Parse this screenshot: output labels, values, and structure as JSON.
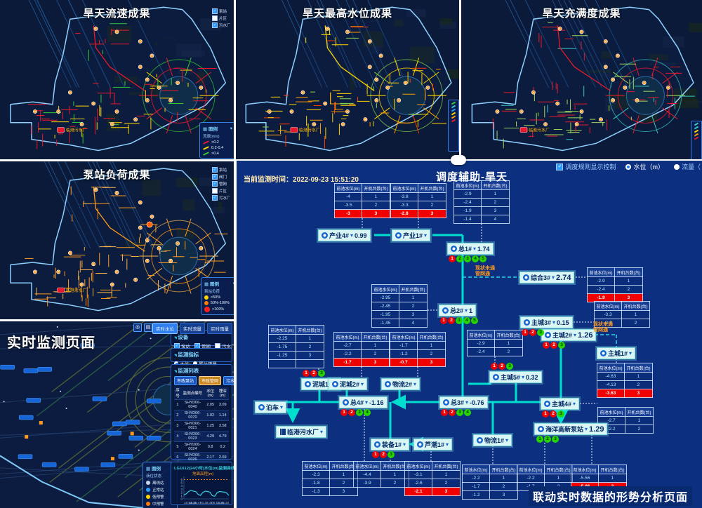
{
  "maps": [
    {
      "title": "旱天流速成果",
      "plant_label": "临港污水厂",
      "layers": [
        {
          "label": "泵站",
          "checked": true
        },
        {
          "label": "片区",
          "checked": false
        },
        {
          "label": "污水厂",
          "checked": true
        }
      ],
      "legend": {
        "title": "图例",
        "subtitle": "流速(m/s)",
        "items": [
          {
            "color": "#e8192c",
            "label": "<0.2"
          },
          {
            "color": "#ffd400",
            "label": "0.2-0.4"
          },
          {
            "color": "#35c935",
            "label": ">0.4"
          }
        ]
      },
      "palette": [
        "#e8192c",
        "#ffd400",
        "#35c935"
      ],
      "weights": [
        0.55,
        0.3,
        0.15
      ]
    },
    {
      "title": "旱天最高水位成果",
      "plant_label": "临港污水厂",
      "side_legend": {
        "colors": [
          "#35c935",
          "#35c9c9",
          "#2e9bff",
          "#ffd400",
          "#ff9a00",
          "#e8192c"
        ]
      },
      "palette": [
        "#ffd400",
        "#ff9a00",
        "#ff3b00",
        "#8bd44a"
      ],
      "weights": [
        0.45,
        0.3,
        0.15,
        0.1
      ]
    },
    {
      "title": "旱天充满度成果",
      "plant_label": "临港污水厂",
      "side_legend": {
        "colors": [
          "#35c9c9",
          "#35c9c9",
          "#ffd400",
          "#ff9a00",
          "#e8192c"
        ]
      },
      "palette": [
        "#e8192c",
        "#9fd85a",
        "#35c9c9"
      ],
      "weights": [
        0.5,
        0.4,
        0.1
      ]
    },
    {
      "title": "泵站负荷成果",
      "plant_label": "临港污水厂",
      "layers": [
        {
          "label": "泵站",
          "checked": true
        },
        {
          "label": "阀门",
          "checked": true
        },
        {
          "label": "管网",
          "checked": true
        },
        {
          "label": "片区",
          "checked": false
        },
        {
          "label": "污水厂",
          "checked": true
        }
      ],
      "legend": {
        "title": "图例",
        "subtitle": "泵站负荷",
        "items": [
          {
            "color": "#ffd400",
            "label": "<50%"
          },
          {
            "color": "#ff7a00",
            "label": "50%-100%"
          },
          {
            "color": "#ff1f1f",
            "label": ">100%"
          }
        ]
      },
      "palette": [
        "#ff9a1e",
        "#ffb64a"
      ],
      "weights": [
        0.7,
        0.3
      ]
    }
  ],
  "monitor": {
    "title": "实时监测页面",
    "tabs": [
      {
        "label": "实时水位",
        "active": true
      },
      {
        "label": "实时流量",
        "active": false
      },
      {
        "label": "实时雨量",
        "active": false
      }
    ],
    "device": {
      "title": "设备",
      "items": [
        {
          "label": "泵站",
          "checked": true
        },
        {
          "label": "管网",
          "checked": true
        },
        {
          "label": "污水厂",
          "checked": false
        }
      ]
    },
    "indicator": {
      "title": "监测指标",
      "options": [
        {
          "label": "水位",
          "selected": true
        },
        {
          "label": "累计雨量",
          "selected": false
        }
      ]
    },
    "list": {
      "title": "监测列表",
      "buttons": [
        {
          "label": "市政泵站",
          "active": false
        },
        {
          "label": "市政管网",
          "active": true
        },
        {
          "label": "污水厂",
          "active": false
        }
      ],
      "headers": [
        "序号",
        "监测点编号",
        "水位(m)",
        "埋深(m)"
      ],
      "rows": [
        [
          "1",
          "SHYD06-0040",
          "2.05",
          "3.09"
        ],
        [
          "2",
          "SHYD06-0070",
          "1.02",
          "1.14"
        ],
        [
          "3",
          "SHYD06-0021",
          "1.25",
          "3.58"
        ],
        [
          "4",
          "SHYD06-0023",
          "4.29",
          "4.79"
        ],
        [
          "5",
          "SHYD06-0024",
          "0.8",
          "0.2"
        ],
        [
          "6",
          "SHYD06-0026",
          "2.17",
          "2.69"
        ],
        [
          "7",
          "SHYD06-0041",
          "0.79",
          "1.04"
        ],
        [
          "8",
          "SHYD06-0049",
          "2.99",
          "4.58"
        ],
        [
          "9",
          "SHYD06-0050",
          "",
          ""
        ]
      ]
    },
    "legend": {
      "title": "图例",
      "subtitle": "液位状态",
      "items": [
        {
          "color": "#c9d6e8",
          "label": "离线站"
        },
        {
          "color": "#2e9bff",
          "label": "正常站"
        },
        {
          "color": "#ffd400",
          "label": "低预警"
        },
        {
          "color": "#ff7a00",
          "label": "中预警"
        },
        {
          "color": "#ff2222",
          "label": "高预警"
        }
      ]
    },
    "chart": {
      "type": "line",
      "title": "LG1612(24小时)水位(m)监测曲线",
      "threshold_label": "地面高程(m)",
      "threshold_value": 6,
      "yticks": [
        6,
        5,
        4,
        3,
        2,
        1,
        0
      ],
      "xticks": [
        "15:43:33",
        "20:28:47",
        "01:28:41",
        "06:13:26",
        "11:43:33"
      ],
      "values": [
        1.2,
        1.6,
        2.3,
        2.6,
        2.4,
        2.3,
        1.4,
        1.1,
        2.0,
        2.4,
        2.3,
        2.1,
        1.0,
        0.8,
        1.9,
        2.3,
        2.2,
        2.1,
        1.9,
        1.1
      ],
      "ylim": [
        0,
        7
      ]
    }
  },
  "dispatch": {
    "current_time_label": "当前监测时间：",
    "current_time": "2022-09-23 15:51:20",
    "title": "调度辅助-旱天",
    "controls": {
      "rule_checkbox": "调度规则显示控制",
      "radio_water": "水位（m）",
      "radio_flow": "流量（"
    },
    "table_headers": [
      "前池水位(m)",
      "开机台数(台)"
    ],
    "note_lines": [
      "现状未通",
      "管网通"
    ],
    "caption": "联动实时数据的形势分析页面",
    "pumps": [
      {
        "id": "chanye4",
        "label": "产业4#",
        "value": "0.99"
      },
      {
        "id": "chanye1",
        "label": "产业1#",
        "value": ""
      },
      {
        "id": "zong1",
        "label": "总1#",
        "value": "1.74",
        "dots": [
          "r",
          "g",
          "g",
          "g",
          "g"
        ]
      },
      {
        "id": "zonghe3",
        "label": "综合3#",
        "value": "2.74",
        "big": true
      },
      {
        "id": "zong2",
        "label": "总2#",
        "value": "1",
        "dots": [
          "r",
          "r",
          "g",
          "g",
          "g"
        ]
      },
      {
        "id": "nicheng1",
        "label": "泥城1#",
        "value": "",
        "dots": [
          "r",
          "r",
          "g"
        ]
      },
      {
        "id": "nicheng2",
        "label": "泥城2#",
        "value": ""
      },
      {
        "id": "wuliu2",
        "label": "物流2#",
        "value": ""
      },
      {
        "id": "zhucheng3",
        "label": "主城3#",
        "value": "0.15",
        "dots": [
          "r",
          "r",
          "g"
        ]
      },
      {
        "id": "zhucheng2",
        "label": "主城2#",
        "value": "1.26",
        "big": true,
        "dots": [
          "r",
          "r",
          "g"
        ]
      },
      {
        "id": "zhucheng1",
        "label": "主城1#",
        "value": ""
      },
      {
        "id": "zhucheng5",
        "label": "主城5#",
        "value": "0.32",
        "dots": [
          "r",
          "r",
          "g"
        ]
      },
      {
        "id": "zong3",
        "label": "总3#",
        "value": "-0.76",
        "dots": [
          "r",
          "r",
          "g",
          "g"
        ]
      },
      {
        "id": "zong4",
        "label": "总4#",
        "value": "-1.16",
        "dots": [
          "r",
          "r",
          "g",
          "g"
        ]
      },
      {
        "id": "boche",
        "label": "泊车",
        "value": ""
      },
      {
        "id": "wwtp",
        "label": "临港污水厂",
        "value": "",
        "plant": true
      },
      {
        "id": "zhuangbei1",
        "label": "装备1#",
        "value": "",
        "dots": [
          "r",
          "r",
          "g"
        ]
      },
      {
        "id": "luchao1",
        "label": "芦潮1#",
        "value": ""
      },
      {
        "id": "wuliu1",
        "label": "物流1#",
        "value": ""
      },
      {
        "id": "zhucheng4",
        "label": "主城4#",
        "value": "",
        "dots": [
          "r",
          "r",
          "g"
        ]
      },
      {
        "id": "haiyang",
        "label": "海洋高新泵站",
        "value": "1.29",
        "big": true,
        "dots": [
          "g",
          "g",
          "g"
        ]
      }
    ],
    "tables": [
      {
        "id": "t_chanye4",
        "rows": [
          {
            "level": "-4",
            "units": "1"
          },
          {
            "level": "-3.5",
            "units": "2"
          },
          {
            "level": "-3",
            "units": "3",
            "alert": true
          }
        ]
      },
      {
        "id": "t_chanye1",
        "rows": [
          {
            "level": "-3.8",
            "units": "1"
          },
          {
            "level": "-3.3",
            "units": "2"
          },
          {
            "level": "-2.8",
            "units": "3",
            "alert": true
          }
        ]
      },
      {
        "id": "t_zong1",
        "rows": [
          {
            "level": "-2.9",
            "units": "1"
          },
          {
            "level": "-2.4",
            "units": "2"
          },
          {
            "level": "-1.9",
            "units": "3"
          },
          {
            "level": "-1.4",
            "units": "4"
          }
        ]
      },
      {
        "id": "t_zonghe3",
        "rows": [
          {
            "level": "-2.9",
            "units": "1"
          },
          {
            "level": "-2.4",
            "units": "2"
          },
          {
            "level": "-1.9",
            "units": "3",
            "alert": true
          }
        ]
      },
      {
        "id": "t_zong2",
        "rows": [
          {
            "level": "-2.95",
            "units": "1"
          },
          {
            "level": "-2.45",
            "units": "2"
          },
          {
            "level": "-1.95",
            "units": "3"
          },
          {
            "level": "-1.45",
            "units": "4"
          }
        ]
      },
      {
        "id": "t_nicheng1",
        "rows": [
          {
            "level": "-2.25",
            "units": "1"
          },
          {
            "level": "-1.75",
            "units": "2"
          },
          {
            "level": "-1.25",
            "units": "3"
          },
          {
            "level": "",
            "units": ""
          }
        ]
      },
      {
        "id": "t_nicheng2",
        "rows": [
          {
            "level": "-2.7",
            "units": "1"
          },
          {
            "level": "-2.2",
            "units": "2"
          },
          {
            "level": "-1.7",
            "units": "3",
            "alert": true
          }
        ]
      },
      {
        "id": "t_wuliu2",
        "rows": [
          {
            "level": "-1.7",
            "units": "1"
          },
          {
            "level": "-1.2",
            "units": "2"
          },
          {
            "level": "-0.7",
            "units": "3",
            "alert": true
          }
        ]
      },
      {
        "id": "t_zhucheng3",
        "rows": [
          {
            "level": "-3.3",
            "units": "1"
          },
          {
            "level": "-2.8",
            "units": "2"
          }
        ]
      },
      {
        "id": "t_zhucheng5",
        "rows": [
          {
            "level": "-2.9",
            "units": "1"
          },
          {
            "level": "-2.4",
            "units": "2"
          }
        ]
      },
      {
        "id": "t_zhucheng1",
        "rows": [
          {
            "level": "-4.63",
            "units": "1"
          },
          {
            "level": "-4.13",
            "units": "2"
          },
          {
            "level": "-3.63",
            "units": "3",
            "alert": true
          }
        ]
      },
      {
        "id": "t_zhucheng4",
        "rows": [
          {
            "level": "-2.7",
            "units": "1"
          },
          {
            "level": "-2.2",
            "units": "2"
          }
        ]
      },
      {
        "id": "t_zong4",
        "rows": [
          {
            "level": "-2.3",
            "units": "1"
          },
          {
            "level": "-1.8",
            "units": "2"
          },
          {
            "level": "-1.3",
            "units": "3"
          }
        ]
      },
      {
        "id": "t_zhuangbei1",
        "rows": [
          {
            "level": "-4.4",
            "units": "1"
          },
          {
            "level": "-3.9",
            "units": "2"
          }
        ]
      },
      {
        "id": "t_luchao1",
        "rows": [
          {
            "level": "-3.1",
            "units": "1"
          },
          {
            "level": "-2.6",
            "units": "2"
          },
          {
            "level": "-2.1",
            "units": "3",
            "alert": true
          }
        ]
      },
      {
        "id": "t_wuliu1",
        "rows": [
          {
            "level": "-2.2",
            "units": "1"
          },
          {
            "level": "-1.7",
            "units": "2"
          },
          {
            "level": "-1.2",
            "units": "3"
          }
        ]
      },
      {
        "id": "t_mid",
        "rows": [
          {
            "level": "-2.2",
            "units": "1"
          },
          {
            "level": "-1.7",
            "units": "2"
          }
        ]
      },
      {
        "id": "t_haiyang",
        "rows": [
          {
            "level": "-5.56",
            "units": "1"
          },
          {
            "level": "-5.06",
            "units": "2",
            "alert": true
          }
        ]
      }
    ]
  }
}
